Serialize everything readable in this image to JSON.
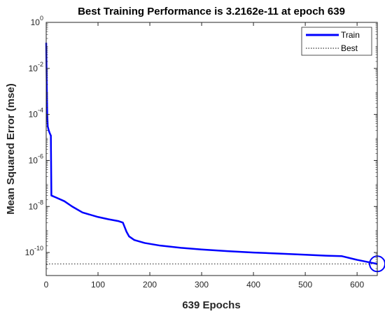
{
  "chart_data": {
    "type": "line",
    "title": "Best Training Performance is 3.2162e-11 at epoch 639",
    "xlabel": "639 Epochs",
    "ylabel": "Mean Squared Error  (mse)",
    "xlim": [
      0,
      639
    ],
    "ylim": [
      1e-11,
      1
    ],
    "yscale": "log",
    "grid": false,
    "legend_position": "top-right",
    "x_ticks": [
      0,
      100,
      200,
      300,
      400,
      500,
      600
    ],
    "y_ticks": [
      {
        "value": 1,
        "base": "10",
        "exp": "0"
      },
      {
        "value": 0.01,
        "base": "10",
        "exp": "-2"
      },
      {
        "value": 0.0001,
        "base": "10",
        "exp": "-4"
      },
      {
        "value": 1e-06,
        "base": "10",
        "exp": "-6"
      },
      {
        "value": 1e-08,
        "base": "10",
        "exp": "-8"
      },
      {
        "value": 1e-10,
        "base": "10",
        "exp": "-10"
      }
    ],
    "series": [
      {
        "name": "Train",
        "color": "#0000ff",
        "style": "solid",
        "x": [
          0,
          1,
          2,
          3,
          5,
          7,
          9,
          10,
          20,
          35,
          50,
          70,
          100,
          120,
          140,
          148,
          155,
          160,
          170,
          190,
          220,
          260,
          300,
          350,
          400,
          450,
          500,
          540,
          570,
          600,
          620,
          639
        ],
        "y": [
          0.13,
          0.0025,
          0.0001,
          3e-05,
          2e-05,
          1.5e-05,
          1.2e-05,
          3e-08,
          2.4e-08,
          1.7e-08,
          1e-08,
          5.5e-09,
          3.5e-09,
          2.8e-09,
          2.3e-09,
          2e-09,
          8e-10,
          5e-10,
          3.5e-10,
          2.6e-10,
          2e-10,
          1.6e-10,
          1.35e-10,
          1.15e-10,
          1e-10,
          9e-11,
          8e-11,
          7.3e-11,
          7e-11,
          4.8e-11,
          3.9e-11,
          3.2162e-11
        ]
      },
      {
        "name": "Best",
        "color": "#000000",
        "style": "dotted",
        "y_value": 3.2162e-11,
        "x_value": 639
      }
    ],
    "best_point": {
      "x": 639,
      "y": 3.2162e-11,
      "color": "#0000ff"
    }
  }
}
